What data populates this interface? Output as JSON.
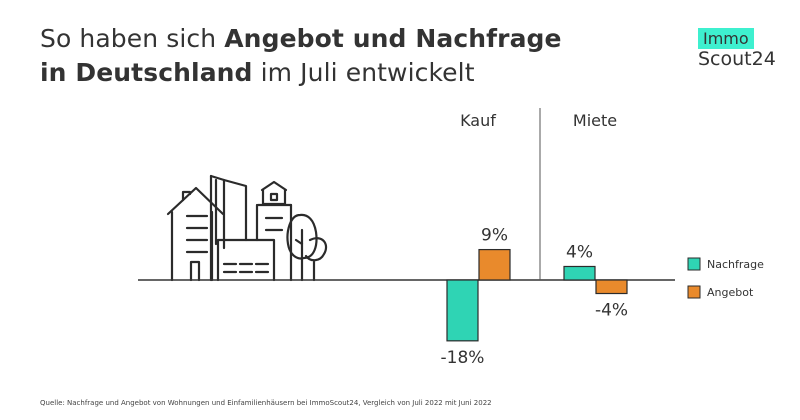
{
  "title": {
    "part1": "So haben sich ",
    "bold1": "Angebot und Nachfrage",
    "bold2": "in Deutschland",
    "part2": " im Juli entwickelt"
  },
  "logo": {
    "top": "Immo",
    "bottom": "Scout24"
  },
  "chart_data": {
    "type": "bar",
    "groups": [
      "Kauf",
      "Miete"
    ],
    "series": [
      {
        "name": "Nachfrage",
        "color": "#2fd4b4",
        "values": [
          -18,
          4
        ],
        "labels": [
          "-18%",
          "4%"
        ]
      },
      {
        "name": "Angebot",
        "color": "#e98a2c",
        "values": [
          9,
          -4
        ],
        "labels": [
          "9%",
          "-4%"
        ]
      }
    ],
    "unit": "%",
    "grid": false,
    "legend_position": "right"
  },
  "illustration": {
    "icon": "city-buildings-icon"
  },
  "source": "Quelle: Nachfrage und Angebot von Wohnungen und Einfamilienhäusern bei ImmoScout24, Vergleich von Juli 2022 mit Juni 2022"
}
